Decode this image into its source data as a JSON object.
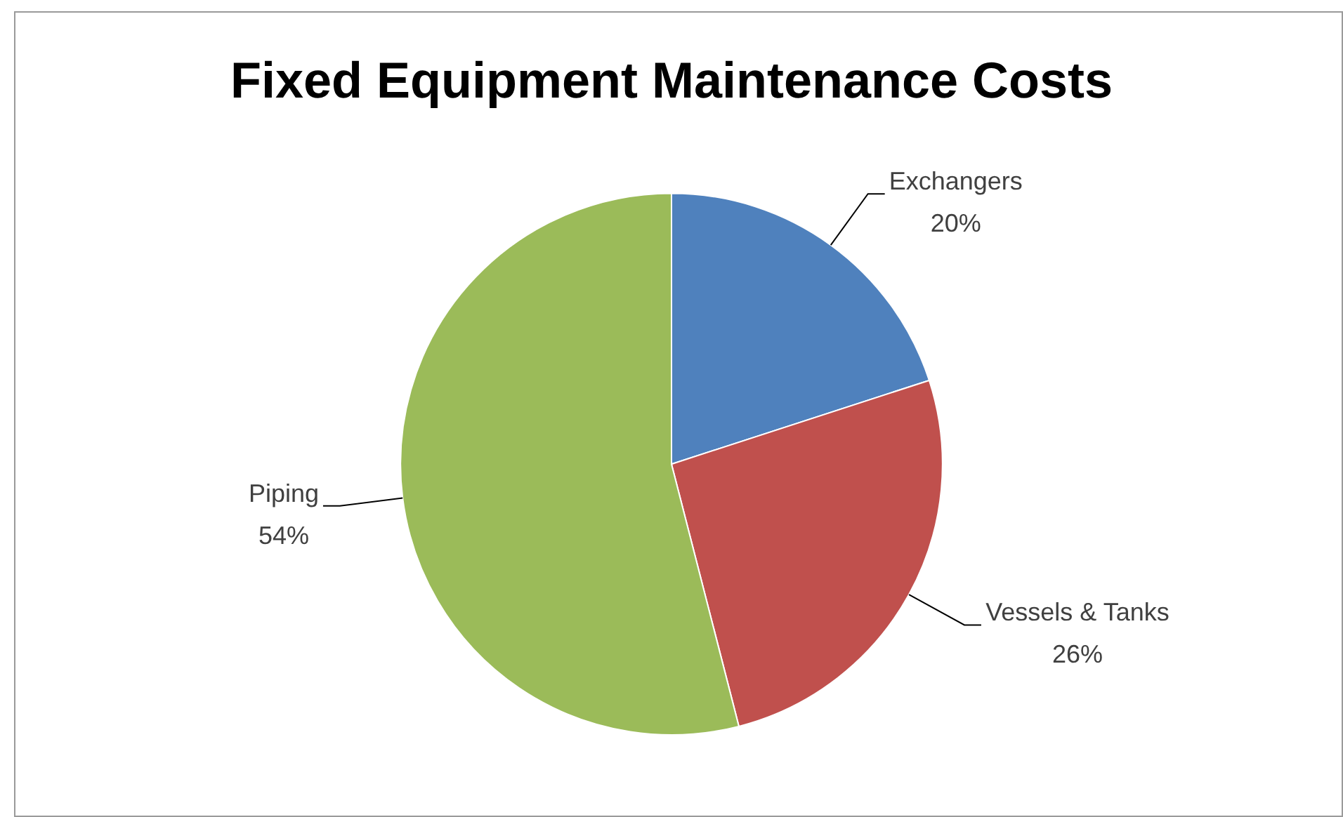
{
  "chart_data": {
    "type": "pie",
    "title": "Fixed Equipment Maintenance Costs",
    "categories": [
      "Exchangers",
      "Vessels & Tanks",
      "Piping"
    ],
    "values": [
      20,
      26,
      54
    ],
    "colors": [
      "#4f81bd",
      "#c0504d",
      "#9bbb59"
    ],
    "value_labels": [
      "20%",
      "26%",
      "54%"
    ],
    "legend": false
  }
}
